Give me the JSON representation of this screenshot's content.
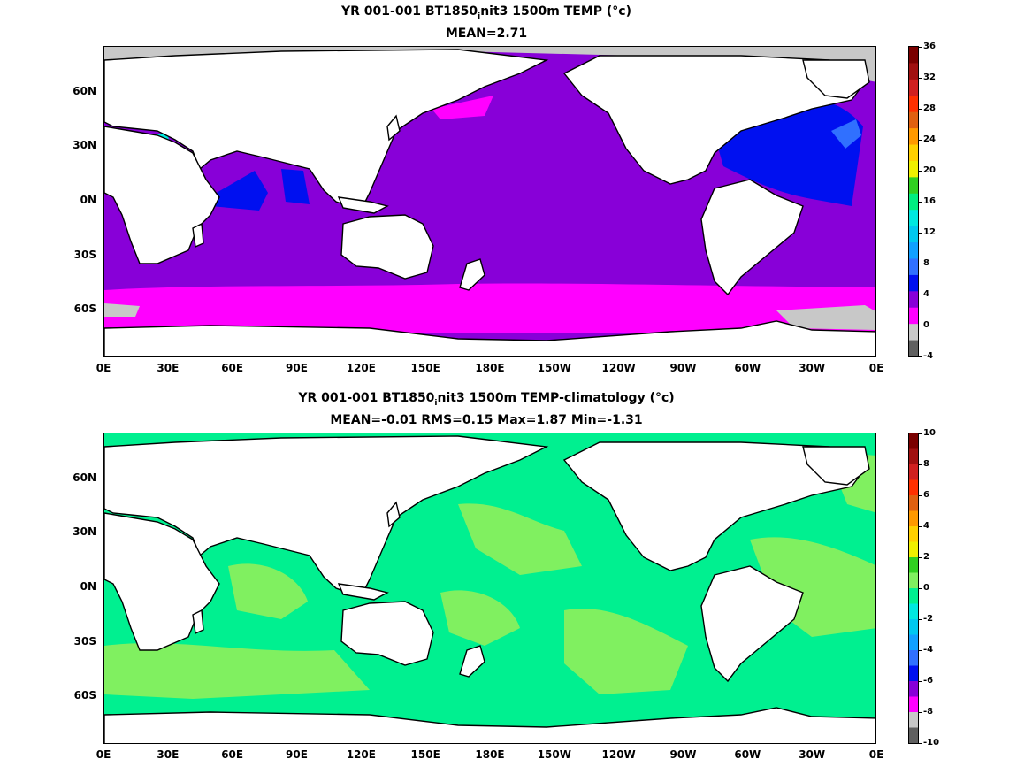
{
  "panels": [
    {
      "title": "YR 001-001 BT1850",
      "title_sub": "i",
      "title_rest": "nit3 1500m TEMP (°c)",
      "stats": "MEAN=2.71",
      "colorbar": {
        "labels": [
          "36",
          "32",
          "28",
          "24",
          "20",
          "16",
          "12",
          "8",
          "4",
          "0",
          "-4"
        ],
        "colors": [
          "#7a0000",
          "#a01010",
          "#d02020",
          "#ff3000",
          "#e06010",
          "#ff9900",
          "#ffd000",
          "#f0f000",
          "#30d020",
          "#00ee80",
          "#00e8e0",
          "#00c8f0",
          "#10a0ff",
          "#3070ff",
          "#0010f0",
          "#8800d8",
          "#ff00ff",
          "#c8c8c8",
          "#606060"
        ]
      },
      "fields": {
        "ocean": "#8800d8",
        "southern": "#ff00ff",
        "atlantic": "#0010f0",
        "atlantic_light": "#3070ff",
        "mediterranean": "#00e8e0",
        "arctic_ice": "#c8c8c8"
      }
    },
    {
      "title": "YR 001-001 BT1850",
      "title_sub": "i",
      "title_rest": "nit3 1500m TEMP-climatology (°c)",
      "stats": "MEAN=-0.01   RMS=0.15   Max=1.87   Min=-1.31",
      "colorbar": {
        "labels": [
          "10",
          "8",
          "6",
          "4",
          "2",
          "0",
          "-2",
          "-4",
          "-6",
          "-8",
          "-10"
        ],
        "colors": [
          "#7a0000",
          "#a01010",
          "#d02020",
          "#ff3000",
          "#e06010",
          "#ff9900",
          "#ffd000",
          "#f0f000",
          "#30d020",
          "#80f060",
          "#00f090",
          "#00e8e0",
          "#00c8f0",
          "#10a0ff",
          "#3070ff",
          "#0010f0",
          "#8800d8",
          "#ff00ff",
          "#c8c8c8",
          "#606060"
        ]
      },
      "fields": {
        "ocean": "#00f090",
        "light": "#80f060"
      }
    }
  ],
  "axes": {
    "y_labels": [
      "60N",
      "30N",
      "0N",
      "30S",
      "60S"
    ],
    "x_labels": [
      "0E",
      "30E",
      "60E",
      "90E",
      "120E",
      "150E",
      "180E",
      "150W",
      "120W",
      "90W",
      "60W",
      "30W",
      "0E"
    ]
  }
}
